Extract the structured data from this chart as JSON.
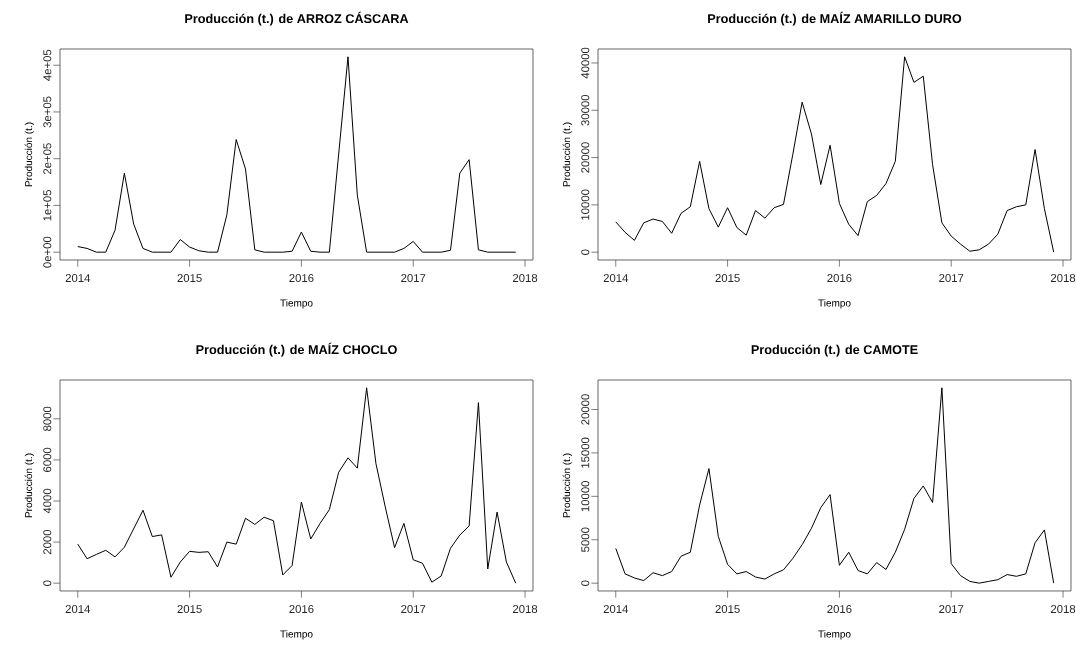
{
  "chart_data": [
    {
      "type": "line",
      "title": "Producción (t.) de ARROZ CÁSCARA",
      "xlabel": "Tiempo",
      "ylabel": "Producción (t.)",
      "color": "#000000",
      "x": [
        "2014-01",
        "2014-02",
        "2014-03",
        "2014-04",
        "2014-05",
        "2014-06",
        "2014-07",
        "2014-08",
        "2014-09",
        "2014-10",
        "2014-11",
        "2014-12",
        "2015-01",
        "2015-02",
        "2015-03",
        "2015-04",
        "2015-05",
        "2015-06",
        "2015-07",
        "2015-08",
        "2015-09",
        "2015-10",
        "2015-11",
        "2015-12",
        "2016-01",
        "2016-02",
        "2016-03",
        "2016-04",
        "2016-05",
        "2016-06",
        "2016-07",
        "2016-08",
        "2016-09",
        "2016-10",
        "2016-11",
        "2016-12",
        "2017-01",
        "2017-02",
        "2017-03",
        "2017-04",
        "2017-05",
        "2017-06",
        "2017-07",
        "2017-08",
        "2017-09",
        "2017-10",
        "2017-11",
        "2017-12"
      ],
      "values": [
        12000,
        8000,
        0,
        0,
        47000,
        169000,
        60000,
        8000,
        0,
        0,
        0,
        27000,
        11000,
        3000,
        0,
        0,
        80000,
        241000,
        178000,
        5000,
        0,
        0,
        0,
        2000,
        43000,
        2000,
        0,
        0,
        210000,
        418000,
        122000,
        0,
        0,
        0,
        0,
        8000,
        23000,
        0,
        0,
        0,
        4000,
        169000,
        198000,
        5000,
        0,
        0,
        0,
        0
      ],
      "xlim": [
        "2013-11-04",
        "2018-01-27"
      ],
      "ylim": [
        -16720,
        434720
      ],
      "xticks": [
        "2014",
        "2015",
        "2016",
        "2017",
        "2018"
      ],
      "yticks": [
        {
          "value": 0,
          "label": "0e+00"
        },
        {
          "value": 100000,
          "label": "1e+05"
        },
        {
          "value": 200000,
          "label": "2e+05"
        },
        {
          "value": 300000,
          "label": "3e+05"
        },
        {
          "value": 400000,
          "label": "4e+05"
        }
      ]
    },
    {
      "type": "line",
      "title": "Producción (t.) de MAÍZ AMARILLO DURO",
      "xlabel": "Tiempo",
      "ylabel": "Producción (t.)",
      "color": "#000000",
      "x": [
        "2014-01",
        "2014-02",
        "2014-03",
        "2014-04",
        "2014-05",
        "2014-06",
        "2014-07",
        "2014-08",
        "2014-09",
        "2014-10",
        "2014-11",
        "2014-12",
        "2015-01",
        "2015-02",
        "2015-03",
        "2015-04",
        "2015-05",
        "2015-06",
        "2015-07",
        "2015-08",
        "2015-09",
        "2015-10",
        "2015-11",
        "2015-12",
        "2016-01",
        "2016-02",
        "2016-03",
        "2016-04",
        "2016-05",
        "2016-06",
        "2016-07",
        "2016-08",
        "2016-09",
        "2016-10",
        "2016-11",
        "2016-12",
        "2017-01",
        "2017-02",
        "2017-03",
        "2017-04",
        "2017-05",
        "2017-06",
        "2017-07",
        "2017-08",
        "2017-09",
        "2017-10",
        "2017-11",
        "2017-12"
      ],
      "values": [
        6400,
        4200,
        2500,
        6200,
        7000,
        6500,
        4000,
        8200,
        9600,
        19200,
        9200,
        5300,
        9400,
        5200,
        3600,
        8800,
        7200,
        9400,
        10100,
        20700,
        31700,
        25000,
        14300,
        22600,
        10300,
        5900,
        3500,
        10700,
        12000,
        14500,
        19200,
        41300,
        35900,
        37200,
        18500,
        6200,
        3400,
        1700,
        200,
        500,
        1700,
        3800,
        8800,
        9600,
        10000,
        21700,
        9200,
        0
      ],
      "xlim": [
        "2013-11-04",
        "2018-01-27"
      ],
      "ylim": [
        -1652,
        42952
      ],
      "xticks": [
        "2014",
        "2015",
        "2016",
        "2017",
        "2018"
      ],
      "yticks": [
        0,
        10000,
        20000,
        30000,
        40000
      ]
    },
    {
      "type": "line",
      "title": "Producción (t.) de MAÍZ CHOCLO",
      "xlabel": "Tiempo",
      "ylabel": "Producción (t.)",
      "color": "#000000",
      "x": [
        "2014-01",
        "2014-02",
        "2014-03",
        "2014-04",
        "2014-05",
        "2014-06",
        "2014-07",
        "2014-08",
        "2014-09",
        "2014-10",
        "2014-11",
        "2014-12",
        "2015-01",
        "2015-02",
        "2015-03",
        "2015-04",
        "2015-05",
        "2015-06",
        "2015-07",
        "2015-08",
        "2015-09",
        "2015-10",
        "2015-11",
        "2015-12",
        "2016-01",
        "2016-02",
        "2016-03",
        "2016-04",
        "2016-05",
        "2016-06",
        "2016-07",
        "2016-08",
        "2016-09",
        "2016-10",
        "2016-11",
        "2016-12",
        "2017-01",
        "2017-02",
        "2017-03",
        "2017-04",
        "2017-05",
        "2017-06",
        "2017-07",
        "2017-08",
        "2017-09",
        "2017-10",
        "2017-11",
        "2017-12"
      ],
      "values": [
        1900,
        1190,
        1400,
        1600,
        1280,
        1750,
        2650,
        3550,
        2270,
        2350,
        290,
        1030,
        1550,
        1500,
        1530,
        790,
        2000,
        1900,
        3160,
        2860,
        3210,
        3040,
        400,
        860,
        3950,
        2150,
        2910,
        3580,
        5400,
        6100,
        5600,
        9510,
        5820,
        3710,
        1730,
        2910,
        1140,
        970,
        50,
        350,
        1700,
        2340,
        2790,
        8790,
        690,
        3460,
        1030,
        0
      ],
      "xlim": [
        "2013-11-04",
        "2018-01-27"
      ],
      "ylim": [
        -380,
        9890
      ],
      "xticks": [
        "2014",
        "2015",
        "2016",
        "2017",
        "2018"
      ],
      "yticks": [
        0,
        2000,
        4000,
        6000,
        8000
      ]
    },
    {
      "type": "line",
      "title": "Producción (t.) de CAMOTE",
      "xlabel": "Tiempo",
      "ylabel": "Producción (t.)",
      "color": "#000000",
      "x": [
        "2014-01",
        "2014-02",
        "2014-03",
        "2014-04",
        "2014-05",
        "2014-06",
        "2014-07",
        "2014-08",
        "2014-09",
        "2014-10",
        "2014-11",
        "2014-12",
        "2015-01",
        "2015-02",
        "2015-03",
        "2015-04",
        "2015-05",
        "2015-06",
        "2015-07",
        "2015-08",
        "2015-09",
        "2015-10",
        "2015-11",
        "2015-12",
        "2016-01",
        "2016-02",
        "2016-03",
        "2016-04",
        "2016-05",
        "2016-06",
        "2016-07",
        "2016-08",
        "2016-09",
        "2016-10",
        "2016-11",
        "2016-12",
        "2017-01",
        "2017-02",
        "2017-03",
        "2017-04",
        "2017-05",
        "2017-06",
        "2017-07",
        "2017-08",
        "2017-09",
        "2017-10",
        "2017-11",
        "2017-12"
      ],
      "values": [
        4000,
        1070,
        600,
        300,
        1200,
        870,
        1340,
        3100,
        3560,
        9000,
        13200,
        5400,
        2170,
        1070,
        1340,
        710,
        470,
        1070,
        1540,
        2850,
        4430,
        6320,
        8700,
        10200,
        2060,
        3560,
        1460,
        1070,
        2370,
        1580,
        3560,
        6200,
        9760,
        11200,
        9290,
        22500,
        2250,
        870,
        200,
        0,
        200,
        400,
        990,
        790,
        1070,
        4660,
        6130,
        0
      ],
      "xlim": [
        "2013-11-04",
        "2018-01-27"
      ],
      "ylim": [
        -900,
        23400
      ],
      "xticks": [
        "2014",
        "2015",
        "2016",
        "2017",
        "2018"
      ],
      "yticks": [
        0,
        5000,
        10000,
        15000,
        20000
      ]
    }
  ]
}
